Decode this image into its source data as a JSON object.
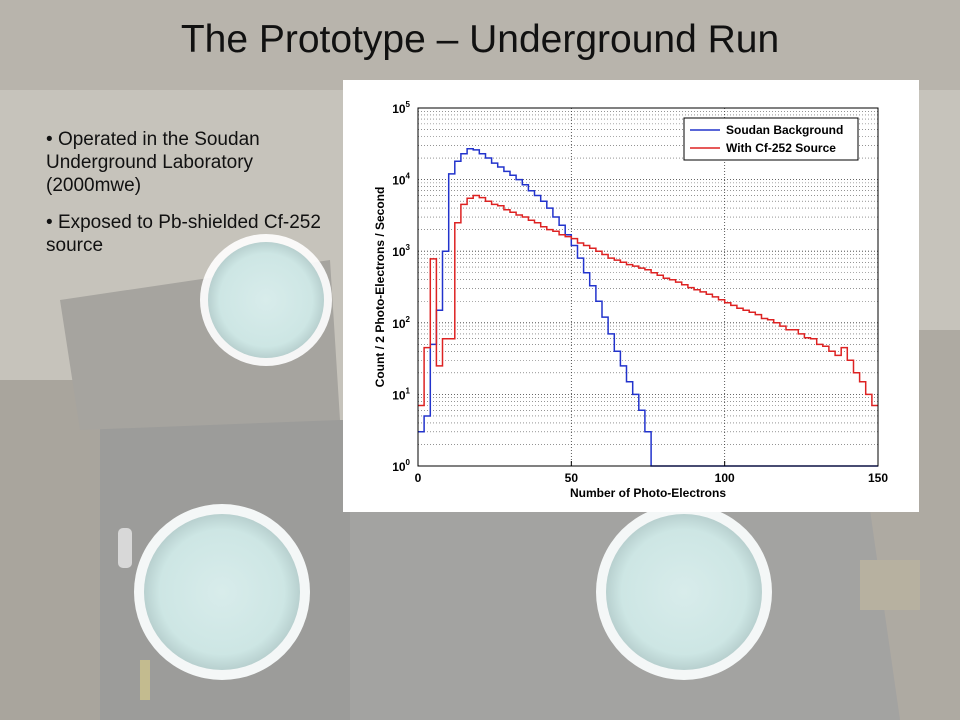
{
  "slide": {
    "title": "The Prototype – Underground Run",
    "bullets": [
      "Operated in the Soudan Underground Laboratory (2000mwe)",
      "Exposed to Pb-shielded Cf-252 source"
    ]
  },
  "chart_data": {
    "type": "line",
    "style": "histogram-step",
    "xlabel": "Number of Photo-Electrons",
    "ylabel": "Count / 2 Photo-Electrons / Second",
    "xlim": [
      0,
      150
    ],
    "ylim": [
      1,
      100000
    ],
    "y_scale": "log",
    "x_ticks": [
      "0",
      "50",
      "100",
      "150"
    ],
    "y_tick_values": [
      1,
      10,
      100,
      1000,
      10000,
      100000
    ],
    "y_ticks": [
      {
        "base": "10",
        "exp": "0"
      },
      {
        "base": "10",
        "exp": "1"
      },
      {
        "base": "10",
        "exp": "2"
      },
      {
        "base": "10",
        "exp": "3"
      },
      {
        "base": "10",
        "exp": "4"
      },
      {
        "base": "10",
        "exp": "5"
      }
    ],
    "grid": true,
    "legend_position": "top-right",
    "bin_width": 2,
    "x": [
      0,
      2,
      4,
      6,
      8,
      10,
      12,
      14,
      16,
      18,
      20,
      22,
      24,
      26,
      28,
      30,
      32,
      34,
      36,
      38,
      40,
      42,
      44,
      46,
      48,
      50,
      52,
      54,
      56,
      58,
      60,
      62,
      64,
      66,
      68,
      70,
      72,
      74,
      76,
      78,
      80,
      82,
      84,
      86,
      88,
      90,
      92,
      94,
      96,
      98,
      100,
      102,
      104,
      106,
      108,
      110,
      112,
      114,
      116,
      118,
      120,
      122,
      124,
      126,
      128,
      130,
      132,
      134,
      136,
      138,
      140,
      142,
      144,
      146,
      148
    ],
    "series": [
      {
        "name": "Soudan Background",
        "color": "#2233cc",
        "values": [
          3,
          5,
          50,
          150,
          1000,
          12000,
          18000,
          23000,
          27000,
          26000,
          23000,
          20000,
          17000,
          15000,
          13000,
          11500,
          10000,
          8500,
          7000,
          6000,
          5000,
          4000,
          3000,
          2300,
          1700,
          1200,
          800,
          500,
          330,
          200,
          120,
          70,
          40,
          25,
          15,
          10,
          6,
          3,
          1,
          0,
          0,
          0,
          0,
          0,
          0,
          0,
          0,
          0,
          0,
          0,
          0,
          0,
          0,
          0,
          0,
          0,
          0,
          0,
          0,
          0,
          0,
          0,
          0,
          0,
          0,
          0,
          0,
          0,
          0,
          0,
          0,
          0,
          0,
          0,
          0
        ]
      },
      {
        "name": "With Cf-252 Source",
        "color": "#dd2222",
        "values": [
          7,
          45,
          780,
          25,
          60,
          60,
          2500,
          4500,
          5500,
          6000,
          5600,
          5000,
          4500,
          4300,
          3800,
          3500,
          3200,
          3000,
          2700,
          2500,
          2200,
          2000,
          1900,
          1700,
          1600,
          1500,
          1300,
          1200,
          1100,
          1000,
          900,
          800,
          750,
          700,
          650,
          620,
          580,
          550,
          500,
          460,
          420,
          400,
          370,
          340,
          310,
          290,
          270,
          250,
          230,
          210,
          190,
          175,
          160,
          150,
          140,
          130,
          115,
          110,
          100,
          90,
          80,
          80,
          70,
          62,
          60,
          50,
          47,
          40,
          35,
          45,
          30,
          20,
          15,
          10,
          7
        ]
      }
    ]
  }
}
